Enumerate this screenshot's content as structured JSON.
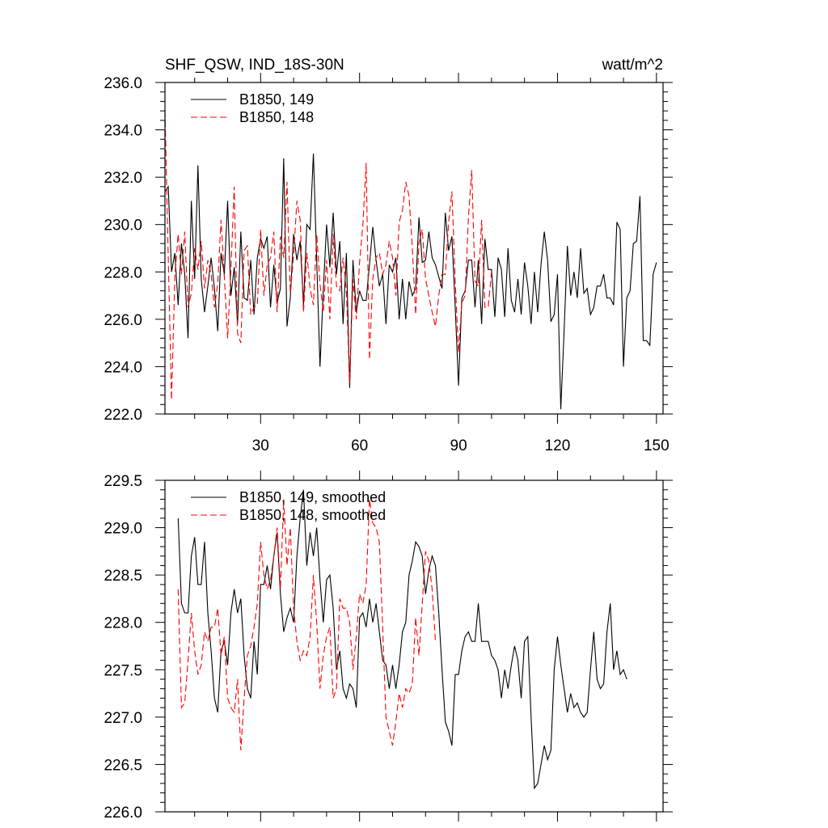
{
  "chart_data": [
    {
      "type": "line",
      "title": "SHF_QSW, IND_18S-30N",
      "units": "watt/m^2",
      "xlim": [
        1,
        152
      ],
      "ylim": [
        222,
        236
      ],
      "xticks": [
        30,
        60,
        90,
        120,
        150
      ],
      "yticks": [
        222,
        224,
        226,
        228,
        230,
        232,
        234,
        236
      ],
      "ytick_labels": [
        "222.0",
        "224.0",
        "226.0",
        "228.0",
        "230.0",
        "232.0",
        "234.0",
        "236.0"
      ],
      "grid": false,
      "legend_position": "top-left",
      "series": [
        {
          "name": "B1850, 149",
          "color": "#000000",
          "dash": "solid",
          "x_start": 1,
          "values": [
            231.4,
            231.6,
            228.0,
            228.8,
            226.6,
            229.2,
            227.9,
            225.2,
            231.0,
            227.7,
            232.5,
            227.7,
            226.3,
            227.4,
            228.6,
            227.3,
            225.5,
            228.8,
            227.9,
            231.0,
            227.0,
            228.2,
            225.8,
            229.7,
            226.9,
            226.8,
            228.5,
            226.2,
            228.6,
            229.4,
            229.0,
            229.5,
            226.5,
            228.3,
            226.7,
            227.3,
            232.8,
            225.7,
            226.9,
            229.6,
            228.5,
            229.3,
            226.6,
            230.0,
            229.8,
            233.0,
            228.5,
            224.0,
            227.2,
            230.0,
            228.2,
            230.5,
            227.9,
            229.3,
            225.8,
            228.8,
            223.1,
            228.5,
            226.3,
            227.2,
            226.8,
            226.8,
            228.3,
            229.9,
            228.5,
            227.4,
            227.9,
            225.8,
            228.3,
            228.0,
            228.6,
            226.0,
            227.7,
            226.0,
            227.6,
            227.0,
            227.3,
            230.3,
            228.4,
            228.5,
            229.7,
            228.6,
            228.3,
            227.8,
            227.3,
            230.5,
            228.9,
            229.5,
            226.5,
            223.2,
            226.9,
            227.2,
            228.5,
            228.5,
            226.5,
            228.5,
            225.8,
            229.4,
            228.1,
            228.1,
            226.1,
            228.6,
            228.1,
            226.1,
            229.0,
            226.8,
            226.3,
            227.7,
            226.2,
            228.4,
            227.4,
            225.8,
            228.0,
            226.3,
            228.3,
            229.7,
            228.5,
            225.9,
            226.2,
            227.9,
            222.2,
            225.5,
            229.1,
            227.0,
            228.0,
            226.9,
            229.0,
            227.1,
            227.3,
            226.2,
            226.5,
            227.4,
            227.4,
            227.9,
            226.9,
            226.9,
            226.6,
            230.1,
            229.8,
            224.0,
            226.9,
            227.2,
            229.2,
            229.3,
            231.2,
            225.1,
            225.1,
            224.9,
            227.9,
            228.4
          ]
        },
        {
          "name": "B1850, 148",
          "color": "#ff0000",
          "dash": "dashed",
          "x_start": 1,
          "values": [
            234.8,
            228.6,
            222.6,
            227.8,
            229.6,
            227.9,
            229.7,
            226.5,
            227.1,
            229.0,
            228.1,
            229.3,
            227.3,
            228.5,
            227.9,
            226.5,
            227.5,
            230.2,
            227.8,
            225.2,
            228.1,
            231.6,
            225.4,
            225.0,
            228.9,
            229.1,
            226.2,
            226.5,
            226.6,
            229.8,
            227.0,
            228.3,
            228.6,
            229.7,
            226.3,
            229.5,
            228.6,
            231.8,
            227.1,
            228.7,
            231.0,
            230.2,
            226.3,
            228.8,
            227.3,
            226.6,
            229.6,
            227.5,
            226.3,
            228.5,
            226.0,
            229.6,
            227.4,
            227.2,
            228.6,
            227.2,
            223.3,
            227.7,
            226.0,
            228.4,
            230.0,
            232.6,
            224.3,
            227.7,
            228.6,
            228.8,
            227.9,
            228.3,
            229.3,
            228.6,
            227.0,
            230.1,
            230.6,
            231.8,
            231.2,
            229.0,
            226.2,
            229.2,
            229.8,
            227.7,
            227.0,
            226.3,
            225.7,
            227.0,
            227.9,
            227.9,
            230.1,
            231.4,
            227.6,
            224.6,
            226.7,
            227.0,
            230.3,
            232.3,
            227.6,
            227.4,
            230.2,
            226.5,
            226.5,
            228.0
          ]
        }
      ]
    },
    {
      "type": "line",
      "xlim": [
        1,
        152
      ],
      "ylim": [
        226,
        229.5
      ],
      "xticks": [
        30,
        60,
        90,
        120,
        150
      ],
      "yticks": [
        226.0,
        226.5,
        227.0,
        227.5,
        228.0,
        228.5,
        229.0,
        229.5
      ],
      "ytick_labels": [
        "226.0",
        "226.5",
        "227.0",
        "227.5",
        "228.0",
        "228.5",
        "229.0",
        "229.5"
      ],
      "grid": false,
      "legend_position": "top-left",
      "series": [
        {
          "name": "B1850, 149, smoothed",
          "color": "#000000",
          "dash": "solid",
          "x_start": 5,
          "values": [
            229.1,
            228.2,
            228.1,
            228.1,
            228.7,
            228.9,
            228.4,
            228.4,
            228.85,
            228.1,
            227.7,
            227.2,
            227.05,
            227.7,
            227.8,
            227.55,
            228.1,
            228.35,
            228.1,
            228.25,
            227.65,
            227.3,
            227.2,
            227.8,
            227.45,
            228.4,
            228.4,
            228.6,
            228.35,
            228.7,
            228.95,
            228.3,
            227.9,
            228.05,
            228.15,
            228.0,
            228.7,
            229.1,
            229.4,
            228.6,
            228.95,
            228.7,
            229.0,
            228.45,
            228.0,
            228.45,
            228.5,
            228.15,
            227.5,
            227.7,
            227.3,
            227.2,
            227.35,
            227.3,
            227.1,
            228.05,
            228.1,
            227.95,
            228.25,
            228.0,
            228.2,
            227.9,
            227.6,
            227.55,
            227.3,
            227.55,
            227.3,
            227.55,
            227.9,
            228.0,
            228.5,
            228.65,
            228.85,
            228.8,
            228.7,
            228.3,
            228.55,
            228.7,
            228.6,
            228.1,
            227.5,
            226.95,
            226.85,
            226.7,
            227.45,
            227.45,
            227.7,
            227.85,
            227.9,
            227.8,
            227.8,
            228.2,
            227.8,
            227.8,
            227.8,
            227.65,
            227.6,
            227.5,
            227.2,
            227.5,
            227.3,
            227.55,
            227.75,
            227.6,
            227.2,
            227.8,
            227.85,
            227.0,
            226.25,
            226.3,
            226.5,
            226.7,
            226.55,
            226.65,
            227.5,
            227.85,
            227.55,
            227.3,
            227.05,
            227.25,
            227.1,
            227.15,
            227.05,
            227.0,
            227.05,
            227.5,
            227.9,
            227.4,
            227.3,
            227.35,
            227.9,
            228.2,
            227.5,
            227.7,
            227.45,
            227.5,
            227.4
          ]
        },
        {
          "name": "B1850, 148, smoothed",
          "color": "#ff0000",
          "dash": "dashed",
          "x_start": 5,
          "values": [
            228.35,
            227.1,
            227.15,
            227.6,
            228.1,
            227.7,
            227.45,
            227.55,
            227.9,
            227.8,
            227.95,
            227.95,
            228.15,
            227.65,
            227.85,
            227.2,
            227.1,
            227.05,
            227.4,
            226.65,
            227.2,
            227.65,
            227.75,
            227.95,
            228.2,
            228.85,
            228.5,
            228.35,
            228.45,
            228.7,
            229.0,
            228.35,
            229.3,
            228.6,
            229.0,
            228.15,
            227.8,
            227.6,
            227.7,
            227.65,
            227.85,
            228.5,
            228.0,
            227.3,
            227.65,
            227.85,
            227.95,
            227.2,
            227.3,
            228.25,
            228.15,
            228.15,
            228.0,
            227.5,
            227.85,
            228.3,
            228.2,
            228.4,
            229.3,
            229.05,
            229.0,
            228.85,
            227.95,
            227.0,
            226.85,
            226.7,
            226.95,
            227.25,
            227.1,
            227.3,
            227.25,
            227.35,
            228.05,
            227.65,
            228.2,
            228.75,
            228.65,
            228.35,
            227.8
          ]
        }
      ]
    }
  ]
}
